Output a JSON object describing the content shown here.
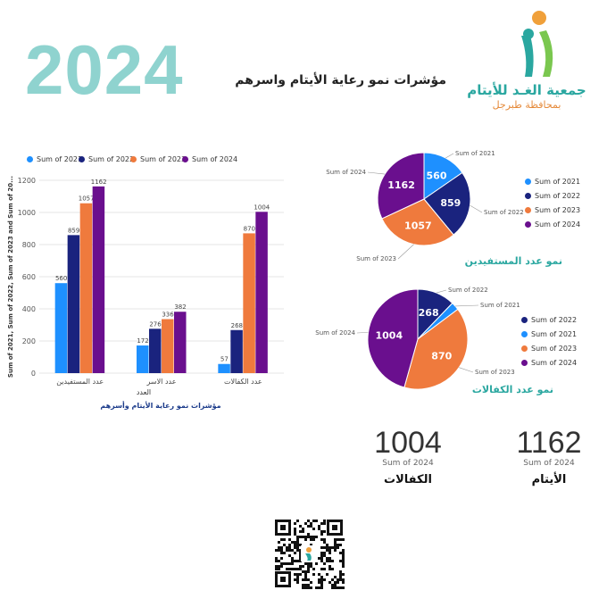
{
  "header": {
    "year": "2024",
    "headline": "مؤشرات نمو رعاية الأيتام واسرهم",
    "org_name": "جمعية الغـد للأيتام",
    "org_sub": "بمحافظة طبرجل"
  },
  "colors": {
    "s2021": "#1e90ff",
    "s2022": "#1a237e",
    "s2023": "#ef7a3d",
    "s2024": "#6a0f8e",
    "teal": "#2aa7a0"
  },
  "chart_data": [
    {
      "type": "bar",
      "title": "",
      "caption": "مؤشرات نمو رعاية الأيتام وأسرهم",
      "xlabel": "العدد",
      "ylabel": "Sum of 2021, Sum of 2022, Sum of 2023 and Sum of 20...",
      "categories": [
        "عدد المستفيدين",
        "عدد الاسر",
        "عدد الكفالات"
      ],
      "ylim": [
        0,
        1200
      ],
      "yticks": [
        0,
        200,
        400,
        600,
        800,
        1000,
        1200
      ],
      "grid": true,
      "legend_position": "top-left",
      "series": [
        {
          "name": "Sum of 2021",
          "values": [
            560,
            172,
            57
          ],
          "color": "#1e90ff"
        },
        {
          "name": "Sum of 2022",
          "values": [
            859,
            276,
            268
          ],
          "color": "#1a237e"
        },
        {
          "name": "Sum of 2023",
          "values": [
            1057,
            336,
            870
          ],
          "color": "#ef7a3d"
        },
        {
          "name": "Sum of 2024",
          "values": [
            1162,
            382,
            1004
          ],
          "color": "#6a0f8e"
        }
      ]
    },
    {
      "type": "pie",
      "title": "نمو عدد المستفيدين",
      "legend_position": "right",
      "slices": [
        {
          "name": "Sum of 2021",
          "value": 560,
          "color": "#1e90ff"
        },
        {
          "name": "Sum of 2022",
          "value": 859,
          "color": "#1a237e"
        },
        {
          "name": "Sum of 2023",
          "value": 1057,
          "color": "#ef7a3d"
        },
        {
          "name": "Sum of 2024",
          "value": 1162,
          "color": "#6a0f8e"
        }
      ]
    },
    {
      "type": "pie",
      "title": "نمو عدد الكفالات",
      "legend_position": "right",
      "slices": [
        {
          "name": "Sum of 2022",
          "value": 268,
          "color": "#1a237e"
        },
        {
          "name": "Sum of 2021",
          "value": 57,
          "color": "#1e90ff"
        },
        {
          "name": "Sum of 2023",
          "value": 870,
          "color": "#ef7a3d"
        },
        {
          "name": "Sum of 2024",
          "value": 1004,
          "color": "#6a0f8e"
        }
      ]
    }
  ],
  "kpis": [
    {
      "value": "1162",
      "sub": "Sum of 2024",
      "label": "الأيتام"
    },
    {
      "value": "1004",
      "sub": "Sum of 2024",
      "label": "الكفالات"
    }
  ],
  "icons": {
    "logo": "orphan-charity-logo-icon",
    "qr": "qr-code-icon"
  }
}
